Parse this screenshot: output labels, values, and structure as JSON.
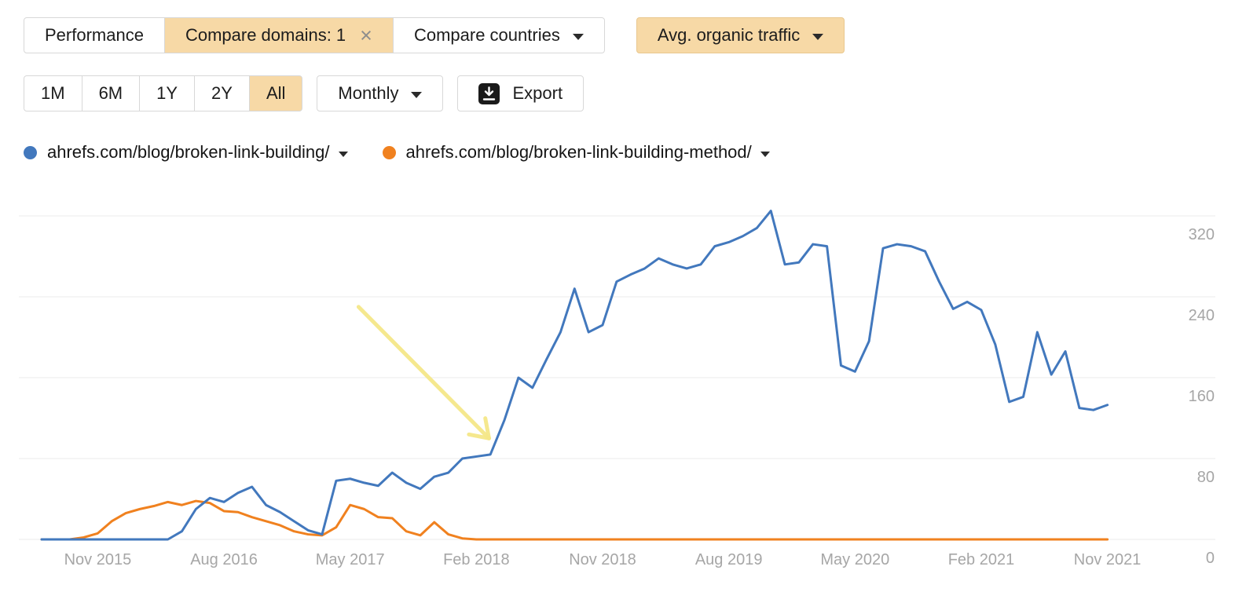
{
  "toolbar": {
    "performance_label": "Performance",
    "compare_domains_label": "Compare domains: 1",
    "close_glyph": "×",
    "compare_countries_label": "Compare countries",
    "metric_label": "Avg. organic traffic"
  },
  "controls": {
    "ranges": [
      "1M",
      "6M",
      "1Y",
      "2Y",
      "All"
    ],
    "active_range": "All",
    "granularity_label": "Monthly",
    "export_label": "Export"
  },
  "legend": [
    {
      "label": "ahrefs.com/blog/broken-link-building/",
      "color": "#4278bd"
    },
    {
      "label": "ahrefs.com/blog/broken-link-building-method/",
      "color": "#f0811f"
    }
  ],
  "colors": {
    "highlight_tan": "#f7d9a6",
    "button_border": "#d8d8d8",
    "gridline": "#ebebeb",
    "axis_label": "#a6a6a6",
    "annotation_yellow": "#f5e788"
  },
  "chart_data": {
    "type": "line",
    "title": "",
    "xlabel": "",
    "ylabel": "Avg. organic traffic",
    "x_unit": "month",
    "x_start": "2015-07",
    "x_end": "2021-11",
    "x_tick_labels": [
      "Nov 2015",
      "Aug 2016",
      "May 2017",
      "Feb 2018",
      "Nov 2018",
      "Aug 2019",
      "May 2020",
      "Feb 2021",
      "Nov 2021"
    ],
    "x_tick_indices": [
      4,
      13,
      22,
      31,
      40,
      49,
      58,
      67,
      76
    ],
    "y_ticks": [
      0,
      80,
      160,
      240,
      320
    ],
    "ylim": [
      0,
      348
    ],
    "grid": "horizontal",
    "y_axis_side": "right",
    "legend_position": "top",
    "series": [
      {
        "name": "ahrefs.com/blog/broken-link-building/",
        "color": "#4278bd",
        "values": [
          0,
          0,
          0,
          0,
          0,
          0,
          0,
          0,
          0,
          0,
          8,
          30,
          41,
          37,
          46,
          52,
          34,
          27,
          18,
          9,
          5,
          58,
          60,
          56,
          53,
          66,
          56,
          50,
          62,
          66,
          80,
          82,
          84,
          118,
          160,
          150,
          178,
          205,
          248,
          205,
          212,
          255,
          262,
          268,
          278,
          272,
          268,
          272,
          290,
          294,
          300,
          308,
          325,
          272,
          274,
          292,
          290,
          172,
          166,
          196,
          288,
          292,
          290,
          285,
          255,
          228,
          235,
          227,
          193,
          136,
          141,
          205,
          163,
          186,
          130,
          128,
          133
        ]
      },
      {
        "name": "ahrefs.com/blog/broken-link-building-method/",
        "color": "#f0811f",
        "values": [
          0,
          0,
          0,
          2,
          6,
          18,
          26,
          30,
          33,
          37,
          34,
          38,
          36,
          28,
          27,
          22,
          18,
          14,
          8,
          5,
          4,
          12,
          34,
          30,
          22,
          21,
          8,
          4,
          17,
          5,
          1,
          0,
          0,
          0,
          0,
          0,
          0,
          0,
          0,
          0,
          0,
          0,
          0,
          0,
          0,
          0,
          0,
          0,
          0,
          0,
          0,
          0,
          0,
          0,
          0,
          0,
          0,
          0,
          0,
          0,
          0,
          0,
          0,
          0,
          0,
          0,
          0,
          0,
          0,
          0,
          0,
          0,
          0,
          0,
          0,
          0,
          0
        ]
      }
    ],
    "annotation_arrow": {
      "description": "hand-drawn yellow arrow pointing at start of traffic surge",
      "from_index": 22.6,
      "from_value": 230,
      "to_index": 31.9,
      "to_value": 100,
      "color": "#f5e788"
    }
  }
}
